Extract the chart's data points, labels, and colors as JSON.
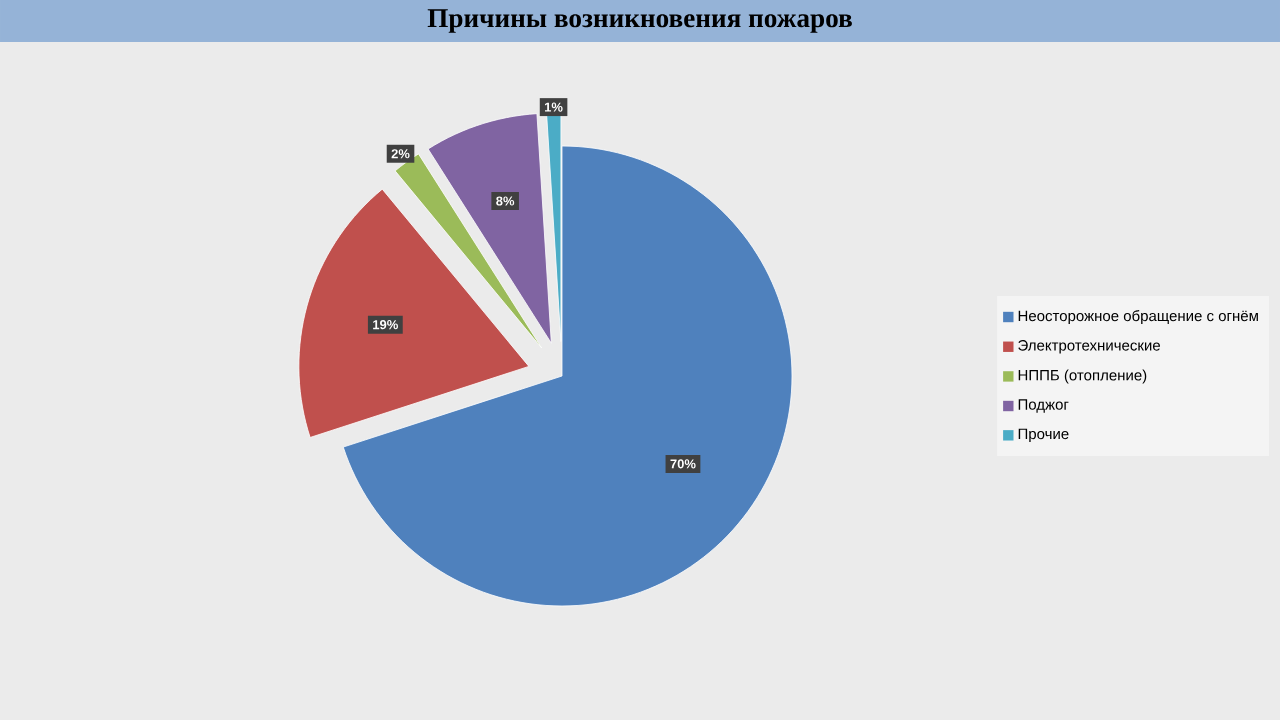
{
  "chart_data": {
    "type": "pie",
    "title": "Причины возникновения пожаров",
    "categories": [
      "Неосторожное обращение с огнём",
      "Электротехнические",
      "НППБ (отопление)",
      "Поджог",
      "Прочие"
    ],
    "values": [
      70,
      19,
      2,
      8,
      1
    ],
    "colors": [
      "#4f81bd",
      "#c0504d",
      "#9bbb59",
      "#8064a2",
      "#4bacc6"
    ],
    "value_labels": [
      "70%",
      "19%",
      "2%",
      "8%",
      "1%"
    ],
    "legend": "right"
  }
}
